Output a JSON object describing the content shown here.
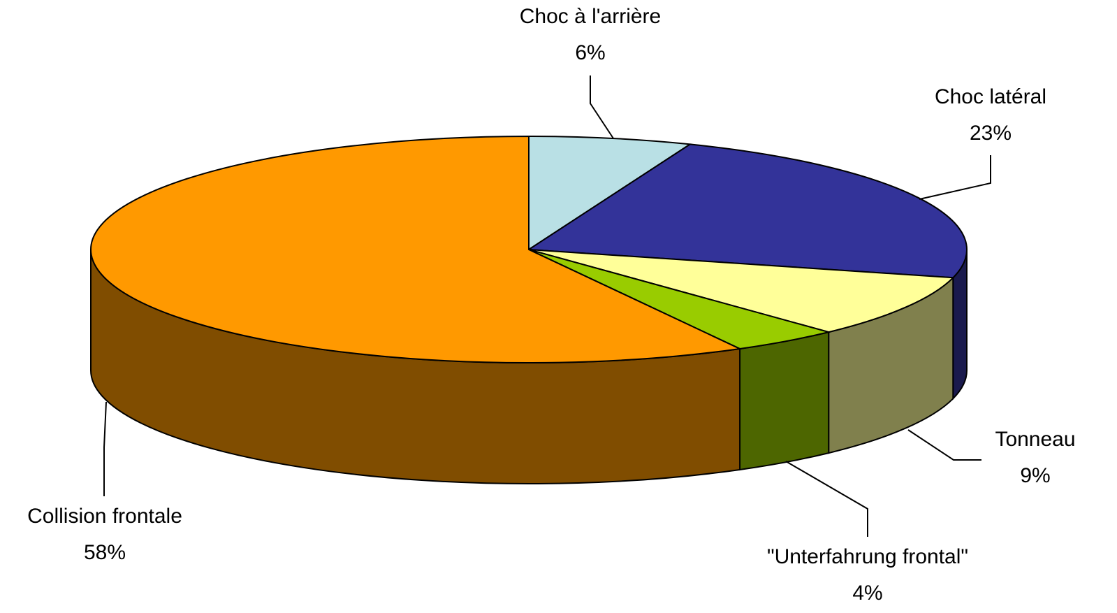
{
  "chart_data": {
    "type": "pie3d",
    "categories": [
      "Choc à l'arrière",
      "Choc latéral",
      "Tonneau",
      "\"Unterfahrung frontal\"",
      "Collision frontale"
    ],
    "values": [
      6,
      23,
      9,
      4,
      58
    ],
    "value_labels": [
      "6%",
      "23%",
      "9%",
      "4%",
      "58%"
    ],
    "colors": [
      "#b9e0e5",
      "#333399",
      "#ffff99",
      "#99cc00",
      "#ff9900"
    ]
  }
}
